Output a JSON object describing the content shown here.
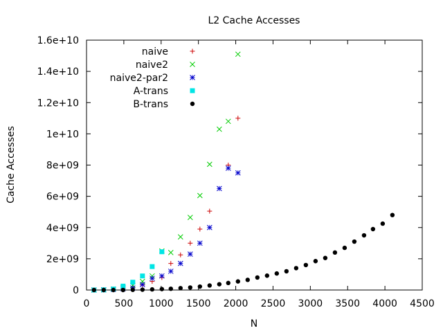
{
  "chart_data": {
    "type": "scatter",
    "title": "L2 Cache Accesses",
    "xlabel": "N",
    "ylabel": "Cache Accesses",
    "xlim": [
      0,
      4500
    ],
    "ylim": [
      0,
      16000000000
    ],
    "x_ticks": [
      0,
      500,
      1000,
      1500,
      2000,
      2500,
      3000,
      3500,
      4000,
      4500
    ],
    "x_tick_labels": [
      "0",
      "500",
      "1000",
      "1500",
      "2000",
      "2500",
      "3000",
      "3500",
      "4000",
      "4500"
    ],
    "y_ticks": [
      0,
      2000000000,
      4000000000,
      6000000000,
      8000000000,
      10000000000,
      12000000000,
      14000000000,
      16000000000
    ],
    "y_tick_labels": [
      "0",
      "2e+09",
      "4e+09",
      "6e+09",
      "8e+09",
      "1e+10",
      "1.2e+10",
      "1.4e+10",
      "1.6e+10"
    ],
    "grid": false,
    "legend_position": "top-left",
    "series": [
      {
        "name": "naive",
        "marker": "plus",
        "color": "#cc0000",
        "points": [
          [
            100,
            0
          ],
          [
            230,
            10000000
          ],
          [
            360,
            50000000
          ],
          [
            490,
            100000000
          ],
          [
            620,
            180000000
          ],
          [
            750,
            320000000
          ],
          [
            880,
            550000000
          ],
          [
            1010,
            800000000
          ],
          [
            1130,
            1700000000
          ],
          [
            1260,
            2250000000
          ],
          [
            1390,
            3000000000
          ],
          [
            1520,
            3900000000
          ],
          [
            1650,
            5050000000
          ],
          [
            1900,
            8000000000
          ],
          [
            2030,
            11000000000
          ]
        ]
      },
      {
        "name": "naive2",
        "marker": "cross",
        "color": "#00cc00",
        "points": [
          [
            100,
            0
          ],
          [
            230,
            10000000
          ],
          [
            360,
            60000000
          ],
          [
            490,
            150000000
          ],
          [
            620,
            300000000
          ],
          [
            750,
            550000000
          ],
          [
            880,
            900000000
          ],
          [
            1010,
            2500000000
          ],
          [
            1130,
            2400000000
          ],
          [
            1260,
            3400000000
          ],
          [
            1390,
            4650000000
          ],
          [
            1520,
            6050000000
          ],
          [
            1650,
            8050000000
          ],
          [
            1780,
            10300000000
          ],
          [
            1900,
            10800000000
          ],
          [
            2030,
            15100000000
          ]
        ]
      },
      {
        "name": "naive2-par2",
        "marker": "star",
        "color": "#0000cc",
        "points": [
          [
            100,
            0
          ],
          [
            230,
            10000000
          ],
          [
            360,
            40000000
          ],
          [
            490,
            80000000
          ],
          [
            620,
            130000000
          ],
          [
            750,
            350000000
          ],
          [
            880,
            750000000
          ],
          [
            1010,
            900000000
          ],
          [
            1130,
            1200000000
          ],
          [
            1260,
            1700000000
          ],
          [
            1390,
            2300000000
          ],
          [
            1520,
            3000000000
          ],
          [
            1650,
            4000000000
          ],
          [
            1780,
            6500000000
          ],
          [
            1900,
            7800000000
          ],
          [
            2030,
            7500000000
          ]
        ]
      },
      {
        "name": "A-trans",
        "marker": "square",
        "color": "#00e5e5",
        "points": [
          [
            100,
            0
          ],
          [
            230,
            10000000
          ],
          [
            360,
            60000000
          ],
          [
            490,
            250000000
          ],
          [
            620,
            500000000
          ],
          [
            750,
            900000000
          ],
          [
            880,
            1500000000
          ],
          [
            1010,
            2450000000
          ]
        ]
      },
      {
        "name": "B-trans",
        "marker": "circle",
        "color": "#000000",
        "points": [
          [
            100,
            0
          ],
          [
            230,
            0
          ],
          [
            360,
            0
          ],
          [
            490,
            0
          ],
          [
            620,
            10000000
          ],
          [
            750,
            20000000
          ],
          [
            880,
            40000000
          ],
          [
            1010,
            60000000
          ],
          [
            1130,
            80000000
          ],
          [
            1260,
            120000000
          ],
          [
            1390,
            160000000
          ],
          [
            1520,
            220000000
          ],
          [
            1650,
            290000000
          ],
          [
            1780,
            370000000
          ],
          [
            1900,
            450000000
          ],
          [
            2030,
            550000000
          ],
          [
            2160,
            650000000
          ],
          [
            2290,
            800000000
          ],
          [
            2420,
            920000000
          ],
          [
            2550,
            1060000000
          ],
          [
            2680,
            1200000000
          ],
          [
            2810,
            1400000000
          ],
          [
            2940,
            1600000000
          ],
          [
            3070,
            1850000000
          ],
          [
            3200,
            2050000000
          ],
          [
            3330,
            2400000000
          ],
          [
            3460,
            2700000000
          ],
          [
            3590,
            3100000000
          ],
          [
            3720,
            3500000000
          ],
          [
            3840,
            3900000000
          ],
          [
            3970,
            4250000000
          ],
          [
            4100,
            4800000000
          ]
        ]
      }
    ]
  }
}
